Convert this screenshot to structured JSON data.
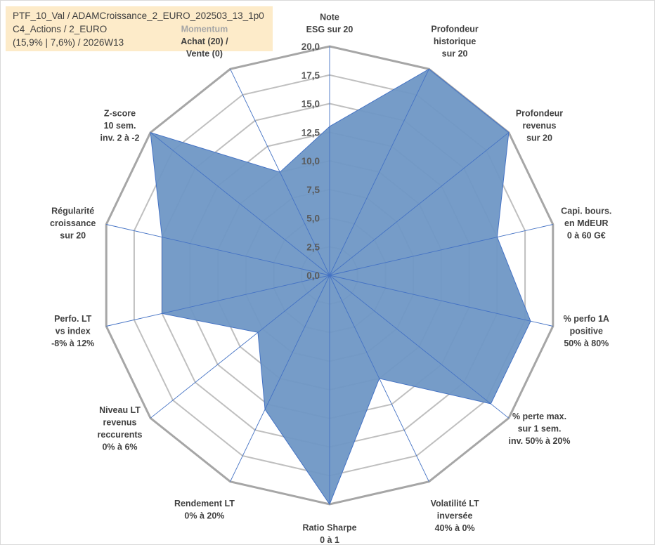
{
  "info": {
    "line1": "PTF_10_Val / ADAMCroissance_2_EURO_202503_13_1p0",
    "line2": "C4_Actions / 2_EURO",
    "line3": "(15,9% | 7,6%) / 2026W13"
  },
  "colors": {
    "fill": "#6f97c5",
    "stroke": "#4472c4",
    "grid": "#bfbfbf",
    "outer_grid": "#a6a6a6",
    "spoke": "#4472c4",
    "info_bg": "#fdebc9"
  },
  "chart_data": {
    "type": "radar",
    "ylim": [
      0,
      20
    ],
    "tick_step": 2.5,
    "tick_labels": [
      "0,0",
      "2,5",
      "5,0",
      "7,5",
      "10,0",
      "12,5",
      "15,0",
      "17,5",
      "20,0"
    ],
    "grid": true,
    "axes": [
      {
        "label": [
          "Note",
          "ESG sur 20"
        ],
        "value": 13
      },
      {
        "label": [
          "Profondeur",
          "historique",
          "sur 20"
        ],
        "value": 20
      },
      {
        "label": [
          "Profondeur",
          "revenus",
          "sur 20"
        ],
        "value": 20
      },
      {
        "label": [
          "Capi. bours.",
          "en MdEUR",
          "0 à 60 G€"
        ],
        "value": 15
      },
      {
        "label": [
          "% perfo 1A",
          "positive",
          "50% à 80%"
        ],
        "value": 18
      },
      {
        "label": [
          "% perte max.",
          "sur 1 sem.",
          "inv. 50% à 20%"
        ],
        "value": 18
      },
      {
        "label": [
          "Volatilité LT",
          "inversée",
          "40% à 0%"
        ],
        "value": 10
      },
      {
        "label": [
          "Ratio Sharpe",
          "0 à 1"
        ],
        "value": 20
      },
      {
        "label": [
          "Rendement LT",
          "0% à 20%"
        ],
        "value": 13
      },
      {
        "label": [
          "Niveau LT",
          "revenus",
          "reccurents",
          "0% à 6%"
        ],
        "value": 8
      },
      {
        "label": [
          "Perfo. LT",
          "vs index",
          "-8% à 12%"
        ],
        "value": 15
      },
      {
        "label": [
          "Régularité",
          "croissance",
          "sur 20"
        ],
        "value": 15
      },
      {
        "label": [
          "Z-score",
          "10 sem.",
          "inv. 2 à -2"
        ],
        "value": 20
      },
      {
        "label": [
          "Momentum",
          "Achat (20) /",
          "Vente (0)"
        ],
        "value": 10,
        "label_highlight_first_line": true
      }
    ]
  }
}
